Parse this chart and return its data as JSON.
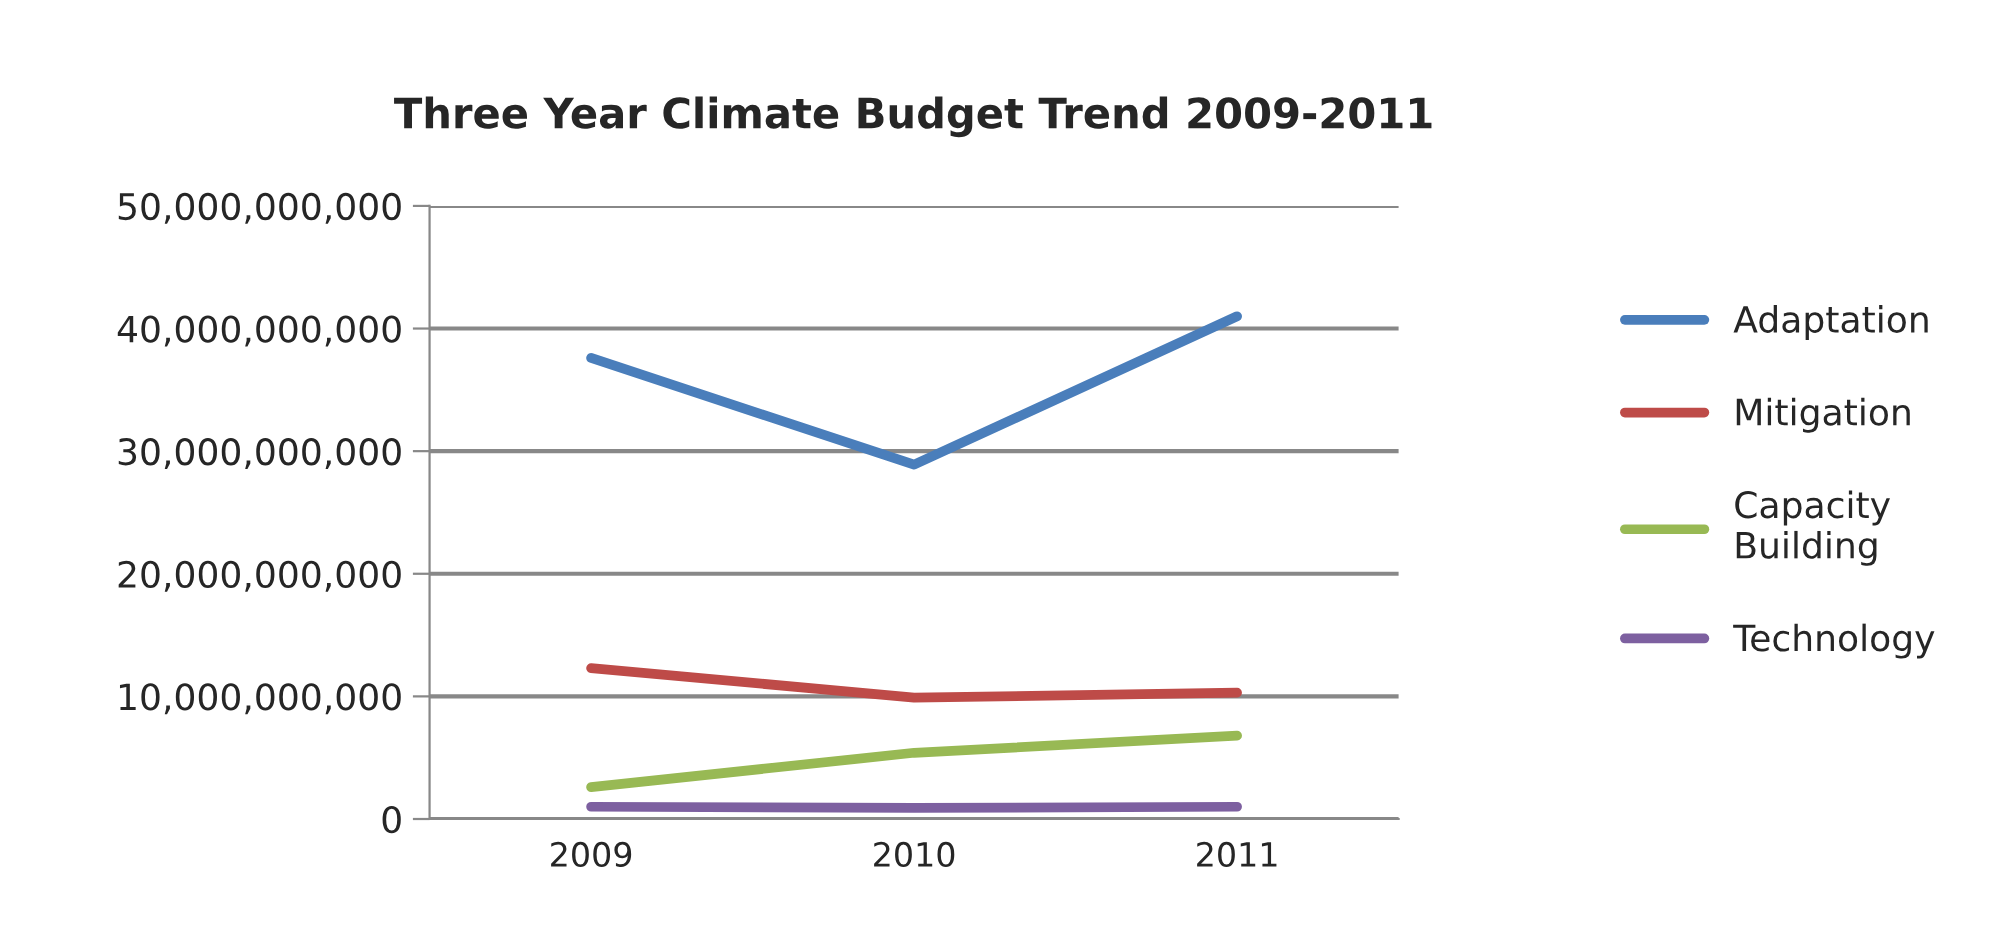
{
  "chart_data": {
    "type": "line",
    "title": "Three Year Climate Budget Trend 2009-2011",
    "categories": [
      "2009",
      "2010",
      "2011"
    ],
    "series": [
      {
        "name": "Adaptation",
        "color": "#4a7ebb",
        "values": [
          37600000000,
          28900000000,
          41000000000
        ]
      },
      {
        "name": "Mitigation",
        "color": "#be4b48",
        "values": [
          12300000000,
          9900000000,
          10300000000
        ]
      },
      {
        "name": "Capacity\nBuilding",
        "color": "#98b954",
        "values": [
          2600000000,
          5400000000,
          6800000000
        ]
      },
      {
        "name": "Technology",
        "color": "#7d60a0",
        "values": [
          1000000000,
          900000000,
          1000000000
        ]
      }
    ],
    "ylim": [
      0,
      50000000000
    ],
    "yticks": [
      {
        "value": 0,
        "label": "0"
      },
      {
        "value": 10000000000,
        "label": "10,000,000,000"
      },
      {
        "value": 20000000000,
        "label": "20,000,000,000"
      },
      {
        "value": 30000000000,
        "label": "30,000,000,000"
      },
      {
        "value": 40000000000,
        "label": "40,000,000,000"
      },
      {
        "value": 50000000000,
        "label": "50,000,000,000"
      }
    ],
    "grid": "y",
    "legend": "right",
    "marker": "none",
    "line_style": "solid"
  }
}
